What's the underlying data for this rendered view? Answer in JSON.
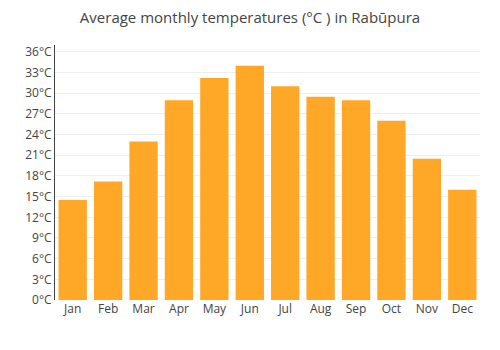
{
  "chart_data": {
    "type": "bar",
    "title": "Average monthly temperatures (°C ) in Rabūpura",
    "categories": [
      "Jan",
      "Feb",
      "Mar",
      "Apr",
      "May",
      "Jun",
      "Jul",
      "Aug",
      "Sep",
      "Oct",
      "Nov",
      "Dec"
    ],
    "values": [
      14.5,
      17.2,
      23.0,
      29.0,
      32.2,
      34.0,
      31.0,
      29.5,
      29.0,
      26.0,
      20.5,
      16.0
    ],
    "color": "#FFA726",
    "ylim": [
      0,
      37
    ],
    "yticks": [
      {
        "value": 0,
        "label": "0°C"
      },
      {
        "value": 3,
        "label": "3°C"
      },
      {
        "value": 6,
        "label": "6°C"
      },
      {
        "value": 9,
        "label": "9°C"
      },
      {
        "value": 12,
        "label": "12°C"
      },
      {
        "value": 15,
        "label": "15°C"
      },
      {
        "value": 18,
        "label": "18°C"
      },
      {
        "value": 21,
        "label": "21°C"
      },
      {
        "value": 24,
        "label": "24°C"
      },
      {
        "value": 27,
        "label": "27°C"
      },
      {
        "value": 30,
        "label": "30°C"
      },
      {
        "value": 33,
        "label": "33°C"
      },
      {
        "value": 36,
        "label": "36°C"
      }
    ],
    "grid": true
  }
}
